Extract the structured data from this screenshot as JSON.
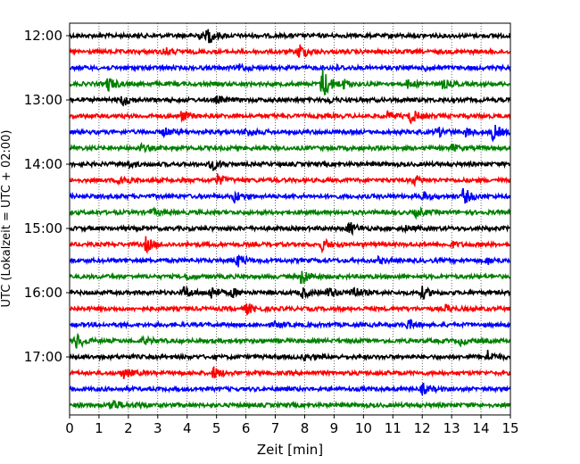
{
  "chart_data": {
    "type": "line",
    "xlabel": "Zeit  [min]",
    "ylabel": "UTC (Lokalzeit = UTC + 02:00)",
    "xlim": [
      0,
      15
    ],
    "x_ticks": [
      0,
      1,
      2,
      3,
      4,
      5,
      6,
      7,
      8,
      9,
      10,
      11,
      12,
      13,
      14,
      15
    ],
    "y_ticks": [
      {
        "label": "12:00",
        "row": 0
      },
      {
        "label": "13:00",
        "row": 4
      },
      {
        "label": "14:00",
        "row": 8
      },
      {
        "label": "15:00",
        "row": 12
      },
      {
        "label": "16:00",
        "row": 16
      },
      {
        "label": "17:00",
        "row": 20
      }
    ],
    "grid": "vertical dotted",
    "row_interval_min": 15,
    "colors": [
      "#000000",
      "#ff0000",
      "#0000ff",
      "#008000"
    ],
    "series": [
      {
        "start": "12:00",
        "color": "#000000",
        "events": [
          {
            "t": 4.7,
            "a": 1.0
          },
          {
            "t": 4.3,
            "a": 0.4
          }
        ]
      },
      {
        "start": "12:15",
        "color": "#ff0000",
        "events": [
          {
            "t": 3.2,
            "a": 0.5
          },
          {
            "t": 7.8,
            "a": 1.0
          }
        ]
      },
      {
        "start": "12:30",
        "color": "#0000ff",
        "events": [
          {
            "t": 5.8,
            "a": 0.4
          },
          {
            "t": 9.0,
            "a": 0.3
          },
          {
            "t": 12.1,
            "a": 0.3
          }
        ]
      },
      {
        "start": "12:45",
        "color": "#008000",
        "events": [
          {
            "t": 1.3,
            "a": 0.9
          },
          {
            "t": 8.6,
            "a": 2.2
          },
          {
            "t": 9.3,
            "a": 0.5
          },
          {
            "t": 11.5,
            "a": 0.5
          },
          {
            "t": 12.7,
            "a": 0.5
          }
        ]
      },
      {
        "start": "13:00",
        "color": "#000000",
        "events": [
          {
            "t": 1.8,
            "a": 0.7
          },
          {
            "t": 5.0,
            "a": 0.4
          },
          {
            "t": 8.8,
            "a": 0.3
          }
        ]
      },
      {
        "start": "13:15",
        "color": "#ff0000",
        "events": [
          {
            "t": 3.8,
            "a": 0.6
          },
          {
            "t": 10.8,
            "a": 0.5
          },
          {
            "t": 11.6,
            "a": 0.9
          }
        ]
      },
      {
        "start": "13:30",
        "color": "#0000ff",
        "events": [
          {
            "t": 3.2,
            "a": 0.5
          },
          {
            "t": 6.0,
            "a": 0.6
          },
          {
            "t": 12.5,
            "a": 0.6
          },
          {
            "t": 13.5,
            "a": 0.5
          },
          {
            "t": 14.4,
            "a": 1.0
          }
        ]
      },
      {
        "start": "13:45",
        "color": "#008000",
        "events": [
          {
            "t": 2.4,
            "a": 0.4
          },
          {
            "t": 13.0,
            "a": 0.4
          }
        ]
      },
      {
        "start": "14:00",
        "color": "#000000",
        "events": [
          {
            "t": 4.8,
            "a": 0.8
          },
          {
            "t": 2.0,
            "a": 0.3
          }
        ]
      },
      {
        "start": "14:15",
        "color": "#ff0000",
        "events": [
          {
            "t": 1.7,
            "a": 0.9
          },
          {
            "t": 5.0,
            "a": 0.7
          },
          {
            "t": 11.7,
            "a": 0.5
          }
        ]
      },
      {
        "start": "14:30",
        "color": "#0000ff",
        "events": [
          {
            "t": 5.6,
            "a": 0.7
          },
          {
            "t": 12.0,
            "a": 0.5
          },
          {
            "t": 13.4,
            "a": 1.0
          }
        ]
      },
      {
        "start": "14:45",
        "color": "#008000",
        "events": [
          {
            "t": 2.8,
            "a": 0.4
          },
          {
            "t": 11.8,
            "a": 0.5
          }
        ]
      },
      {
        "start": "15:00",
        "color": "#000000",
        "events": [
          {
            "t": 9.5,
            "a": 0.8
          },
          {
            "t": 11.4,
            "a": 0.3
          }
        ]
      },
      {
        "start": "15:15",
        "color": "#ff0000",
        "events": [
          {
            "t": 2.6,
            "a": 0.9
          },
          {
            "t": 8.6,
            "a": 0.7
          },
          {
            "t": 13.0,
            "a": 0.3
          }
        ]
      },
      {
        "start": "15:30",
        "color": "#0000ff",
        "events": [
          {
            "t": 5.7,
            "a": 0.8
          },
          {
            "t": 10.5,
            "a": 0.3
          },
          {
            "t": 14.2,
            "a": 0.4
          }
        ]
      },
      {
        "start": "15:45",
        "color": "#008000",
        "events": [
          {
            "t": 7.9,
            "a": 1.1
          },
          {
            "t": 4.0,
            "a": 0.3
          }
        ]
      },
      {
        "start": "16:00",
        "color": "#000000",
        "events": [
          {
            "t": 3.9,
            "a": 0.7
          },
          {
            "t": 4.8,
            "a": 0.8
          },
          {
            "t": 5.5,
            "a": 0.5
          },
          {
            "t": 7.9,
            "a": 0.6
          },
          {
            "t": 8.8,
            "a": 0.7
          },
          {
            "t": 9.6,
            "a": 0.9
          },
          {
            "t": 12.0,
            "a": 0.7
          }
        ]
      },
      {
        "start": "16:15",
        "color": "#ff0000",
        "events": [
          {
            "t": 6.0,
            "a": 0.7
          },
          {
            "t": 12.8,
            "a": 0.4
          }
        ]
      },
      {
        "start": "16:30",
        "color": "#0000ff",
        "events": [
          {
            "t": 11.5,
            "a": 0.6
          },
          {
            "t": 7.0,
            "a": 0.3
          }
        ]
      },
      {
        "start": "16:45",
        "color": "#008000",
        "events": [
          {
            "t": 0.2,
            "a": 1.0
          },
          {
            "t": 2.5,
            "a": 0.4
          },
          {
            "t": 13.3,
            "a": 0.4
          }
        ]
      },
      {
        "start": "17:00",
        "color": "#000000",
        "events": [
          {
            "t": 14.2,
            "a": 0.8
          },
          {
            "t": 8.0,
            "a": 0.3
          }
        ]
      },
      {
        "start": "17:15",
        "color": "#ff0000",
        "events": [
          {
            "t": 1.8,
            "a": 0.7
          },
          {
            "t": 4.9,
            "a": 0.7
          }
        ]
      },
      {
        "start": "17:30",
        "color": "#0000ff",
        "events": [
          {
            "t": 12.0,
            "a": 0.6
          }
        ]
      },
      {
        "start": "17:45",
        "color": "#008000",
        "events": [
          {
            "t": 1.4,
            "a": 0.9
          },
          {
            "t": 2.3,
            "a": 0.3
          }
        ]
      }
    ]
  }
}
